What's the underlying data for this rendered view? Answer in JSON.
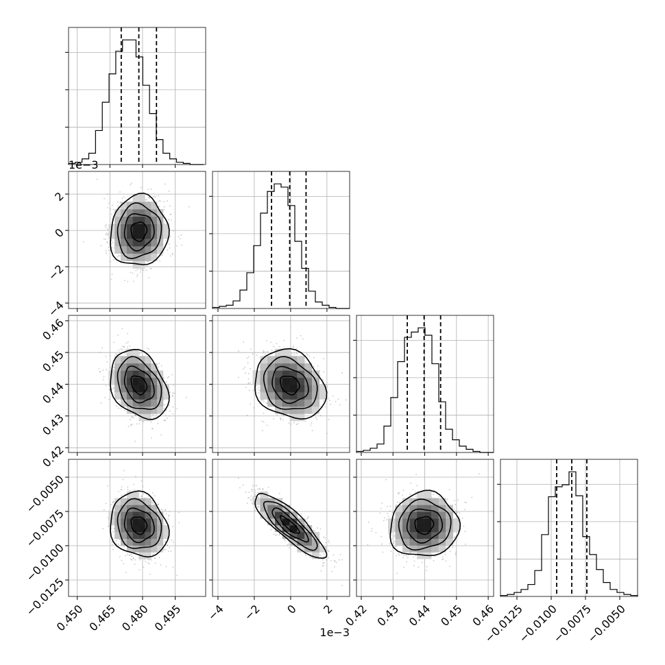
{
  "chart_data": {
    "type": "corner",
    "grid": true,
    "colors": {
      "line": "#000000",
      "scatter": "#9a9a9a",
      "grid": "#b0b0b0",
      "background": "#ffffff"
    },
    "parameters": [
      {
        "range": [
          0.446,
          0.509
        ],
        "ticks": [
          0.45,
          0.465,
          0.48,
          0.495
        ],
        "tick_labels": [
          "0.450",
          "0.465",
          "0.480",
          "0.495"
        ],
        "offset_text": "",
        "quantiles": [
          0.4702,
          0.4783,
          0.4864
        ],
        "mean": 0.4783,
        "sd": 0.0065
      },
      {
        "range": [
          -4.3,
          3.25
        ],
        "ticks": [
          -4,
          -2,
          0,
          2
        ],
        "tick_labels": [
          "−4",
          "−2",
          "0",
          "2"
        ],
        "offset_text": "1e−3",
        "quantiles": [
          -1.05,
          -0.05,
          0.85
        ],
        "mean": -0.05,
        "sd": 0.95
      },
      {
        "range": [
          0.4185,
          0.4617
        ],
        "ticks": [
          0.42,
          0.43,
          0.44,
          0.45,
          0.46
        ],
        "tick_labels": [
          "0.42",
          "0.43",
          "0.44",
          "0.45",
          "0.46"
        ],
        "offset_text": "",
        "quantiles": [
          0.4345,
          0.4398,
          0.445
        ],
        "mean": 0.4398,
        "sd": 0.0053
      },
      {
        "range": [
          -0.0137,
          -0.0037
        ],
        "ticks": [
          -0.0125,
          -0.01,
          -0.0075,
          -0.005
        ],
        "tick_labels": [
          "−0.0125",
          "−0.0100",
          "−0.0075",
          "−0.0050"
        ],
        "offset_text": "",
        "quantiles": [
          -0.0096,
          -0.0085,
          -0.0074
        ],
        "mean": -0.0085,
        "sd": 0.00115
      }
    ],
    "histograms": [
      {
        "param": 0,
        "edges_start": 0.446,
        "bin_width": 0.0031,
        "counts": [
          1,
          2,
          5,
          10,
          30,
          55,
          80,
          100,
          110,
          110,
          95,
          70,
          45,
          22,
          10,
          5,
          2,
          1,
          0,
          0
        ]
      },
      {
        "param": 1,
        "edges_start": -4.3,
        "bin_width": 0.3775,
        "counts": [
          1,
          2,
          3,
          7,
          17,
          33,
          58,
          88,
          108,
          115,
          112,
          95,
          62,
          37,
          16,
          6,
          3,
          1,
          0,
          0
        ]
      },
      {
        "param": 2,
        "edges_start": 0.4185,
        "bin_width": 0.00216,
        "counts": [
          1,
          2,
          4,
          8,
          25,
          52,
          86,
          109,
          114,
          118,
          111,
          84,
          48,
          22,
          12,
          6,
          3,
          1,
          0,
          0
        ]
      },
      {
        "param": 3,
        "edges_start": -0.0137,
        "bin_width": 0.0005,
        "counts": [
          1,
          2,
          4,
          7,
          12,
          26,
          62,
          100,
          110,
          112,
          125,
          101,
          60,
          42,
          27,
          14,
          7,
          4,
          2,
          1
        ]
      }
    ],
    "pairs": [
      {
        "x": 0,
        "y": 1,
        "corr": 0.05
      },
      {
        "x": 0,
        "y": 2,
        "corr": -0.3
      },
      {
        "x": 1,
        "y": 2,
        "corr": -0.2
      },
      {
        "x": 0,
        "y": 3,
        "corr": -0.15
      },
      {
        "x": 1,
        "y": 3,
        "corr": -0.85
      },
      {
        "x": 2,
        "y": 3,
        "corr": 0.05
      }
    ]
  }
}
